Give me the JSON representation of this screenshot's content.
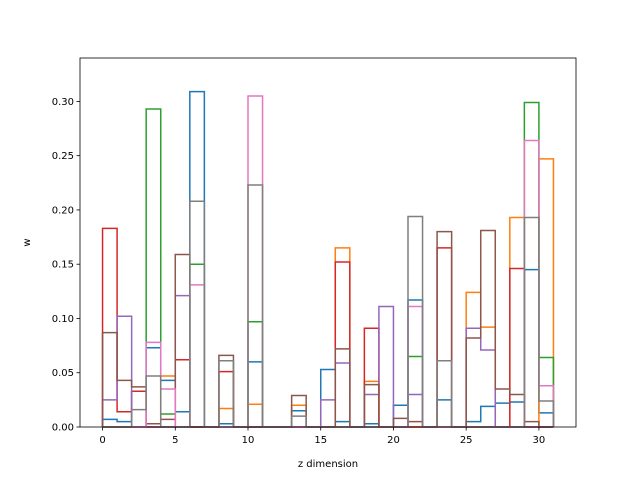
{
  "chart_data": {
    "type": "step",
    "title": "",
    "xlabel": "z dimension",
    "ylabel": "w",
    "xlim": [
      -1.55,
      32.55
    ],
    "ylim": [
      0,
      0.34
    ],
    "xticks": [
      0,
      5,
      10,
      15,
      20,
      25,
      30
    ],
    "yticks": [
      0.0,
      0.05,
      0.1,
      0.15,
      0.2,
      0.25,
      0.3
    ],
    "ytick_labels": [
      "0.00",
      "0.05",
      "0.10",
      "0.15",
      "0.20",
      "0.25",
      "0.30"
    ],
    "grid": false,
    "legend": "none",
    "bin_edges": [
      0,
      1,
      2,
      3,
      4,
      5,
      6,
      7,
      8,
      9,
      10,
      11,
      12,
      13,
      14,
      15,
      16,
      17,
      18,
      19,
      20,
      21,
      22,
      23,
      24,
      25,
      26,
      27,
      28,
      29,
      30,
      31
    ],
    "series": [
      {
        "color": "#1f77b4",
        "values": [
          0.007,
          0.005,
          0.033,
          0.073,
          0.043,
          0.014,
          0.309,
          0.0,
          0.003,
          0.0,
          0.06,
          0.0,
          0.0,
          0.015,
          0.0,
          0.053,
          0.005,
          0.0,
          0.003,
          0.0,
          0.02,
          0.117,
          0.0,
          0.025,
          0.0,
          0.005,
          0.019,
          0.022,
          0.023,
          0.145,
          0.013
        ]
      },
      {
        "color": "#ff7f0e",
        "values": [
          0.0,
          0.0,
          0.0,
          0.0,
          0.047,
          0.0,
          0.0,
          0.0,
          0.017,
          0.0,
          0.021,
          0.0,
          0.0,
          0.02,
          0.0,
          0.0,
          0.165,
          0.0,
          0.042,
          0.0,
          0.0,
          0.0,
          0.0,
          0.0,
          0.0,
          0.124,
          0.092,
          0.0,
          0.193,
          0.0,
          0.247
        ]
      },
      {
        "color": "#2ca02c",
        "values": [
          0.0,
          0.0,
          0.0,
          0.293,
          0.012,
          0.0,
          0.15,
          0.0,
          0.0,
          0.0,
          0.097,
          0.0,
          0.0,
          0.0,
          0.0,
          0.0,
          0.0,
          0.0,
          0.0,
          0.0,
          0.0,
          0.065,
          0.0,
          0.0,
          0.0,
          0.0,
          0.0,
          0.0,
          0.0,
          0.299,
          0.064
        ]
      },
      {
        "color": "#d62728",
        "values": [
          0.183,
          0.014,
          0.033,
          0.0,
          0.0,
          0.062,
          0.0,
          0.0,
          0.051,
          0.0,
          0.0,
          0.0,
          0.0,
          0.0,
          0.0,
          0.0,
          0.152,
          0.0,
          0.091,
          0.0,
          0.0,
          0.0,
          0.0,
          0.165,
          0.0,
          0.0,
          0.0,
          0.0,
          0.146,
          0.0,
          0.0
        ]
      },
      {
        "color": "#9467bd",
        "values": [
          0.025,
          0.102,
          0.0,
          0.0,
          0.0,
          0.121,
          0.0,
          0.0,
          0.0,
          0.0,
          0.0,
          0.0,
          0.0,
          0.0,
          0.0,
          0.025,
          0.059,
          0.0,
          0.03,
          0.111,
          0.0,
          0.03,
          0.0,
          0.0,
          0.0,
          0.091,
          0.071,
          0.0,
          0.0,
          0.0,
          0.0
        ]
      },
      {
        "color": "#8c564b",
        "values": [
          0.087,
          0.043,
          0.037,
          0.003,
          0.007,
          0.159,
          0.0,
          0.0,
          0.066,
          0.0,
          0.0,
          0.0,
          0.0,
          0.029,
          0.0,
          0.0,
          0.072,
          0.0,
          0.039,
          0.0,
          0.008,
          0.005,
          0.0,
          0.18,
          0.0,
          0.082,
          0.181,
          0.035,
          0.03,
          0.005,
          0.0
        ]
      },
      {
        "color": "#e377c2",
        "values": [
          0.0,
          0.0,
          0.0,
          0.078,
          0.035,
          0.0,
          0.131,
          0.0,
          0.0,
          0.0,
          0.305,
          0.0,
          0.0,
          0.0,
          0.0,
          0.0,
          0.0,
          0.0,
          0.0,
          0.0,
          0.0,
          0.111,
          0.0,
          0.0,
          0.0,
          0.0,
          0.0,
          0.0,
          0.0,
          0.264,
          0.038
        ]
      },
      {
        "color": "#7f7f7f",
        "values": [
          0.0,
          0.0,
          0.016,
          0.047,
          0.0,
          0.0,
          0.208,
          0.0,
          0.061,
          0.0,
          0.223,
          0.0,
          0.0,
          0.01,
          0.0,
          0.0,
          0.0,
          0.0,
          0.0,
          0.0,
          0.0,
          0.194,
          0.0,
          0.061,
          0.0,
          0.0,
          0.0,
          0.0,
          0.0,
          0.193,
          0.024
        ]
      }
    ]
  }
}
